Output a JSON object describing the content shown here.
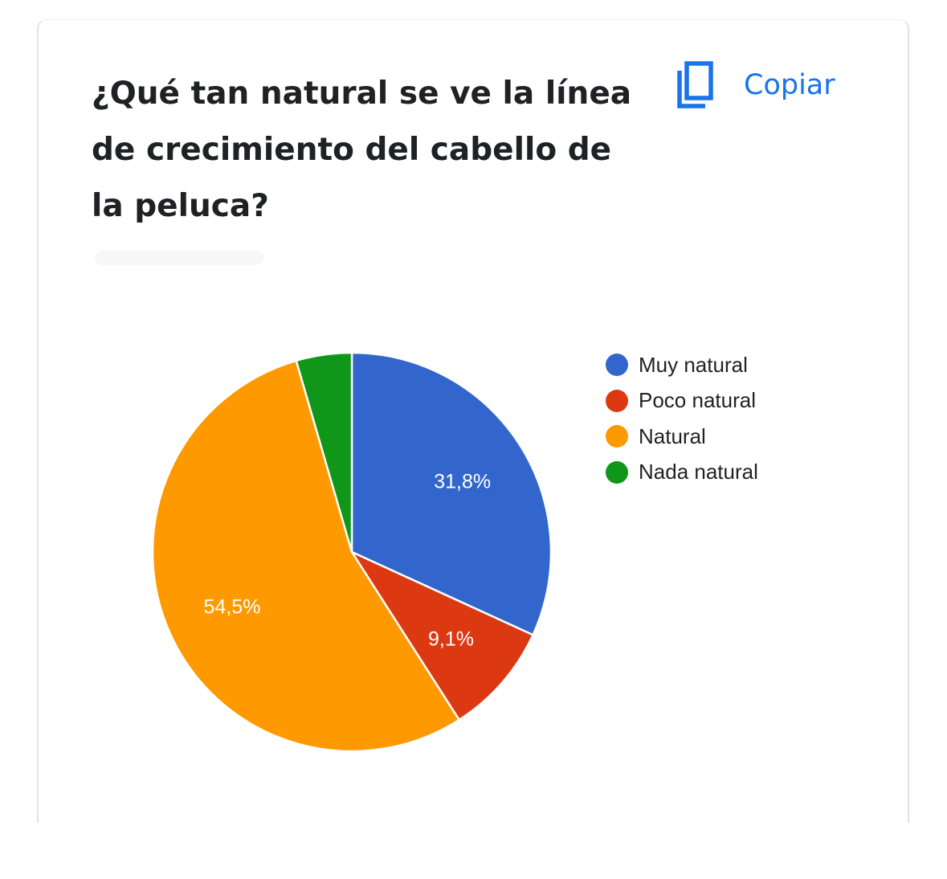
{
  "copy_button": {
    "label": "Copiar",
    "icon": "copy-icon",
    "color": "#1a73e8"
  },
  "chart_data": {
    "type": "pie",
    "title": "¿Qué tan natural se ve la línea de crecimiento del cabello de la peluca?",
    "legend_position": "right",
    "start_angle_deg": 90,
    "direction": "clockwise",
    "slices": [
      {
        "name": "Muy natural",
        "value": 31.8,
        "label": "31,8%",
        "color": "#3366cc"
      },
      {
        "name": "Poco natural",
        "value": 9.1,
        "label": "9,1%",
        "color": "#dc3912"
      },
      {
        "name": "Natural",
        "value": 54.5,
        "label": "54,5%",
        "color": "#ff9900"
      },
      {
        "name": "Nada natural",
        "value": 4.5,
        "label": "",
        "color": "#109618"
      }
    ]
  }
}
